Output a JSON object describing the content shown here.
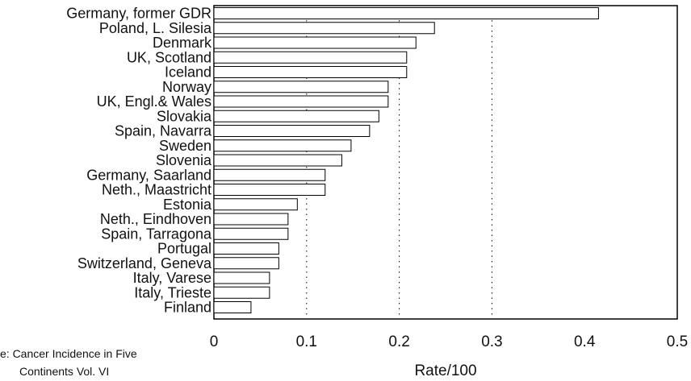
{
  "chart_data": {
    "type": "bar",
    "orientation": "horizontal",
    "categories": [
      "Germany, former GDR",
      "Poland, L. Silesia",
      "Denmark",
      "UK, Scotland",
      "Iceland",
      "Norway",
      "UK, Engl.& Wales",
      "Slovakia",
      "Spain, Navarra",
      "Sweden",
      "Slovenia",
      "Germany, Saarland",
      "Neth., Maastricht",
      "Estonia",
      "Neth., Eindhoven",
      "Spain, Tarragona",
      "Portugal",
      "Switzerland, Geneva",
      "Italy, Varese",
      "Italy, Trieste",
      "Finland"
    ],
    "values": [
      0.415,
      0.238,
      0.218,
      0.208,
      0.208,
      0.188,
      0.188,
      0.178,
      0.168,
      0.148,
      0.138,
      0.12,
      0.12,
      0.09,
      0.08,
      0.08,
      0.07,
      0.07,
      0.06,
      0.06,
      0.04
    ],
    "xlabel": "Rate/100",
    "xlim": [
      0,
      0.5
    ],
    "xticks": [
      "0",
      "0.1",
      "0.2",
      "0.3",
      "0.4",
      "0.5"
    ],
    "grid": "vertical dotted lines at 0.1, 0.2, 0.3",
    "bar_color": "#ffffff",
    "edge_color": "#000000"
  },
  "source_note": {
    "line1": "e: Cancer Incidence in Five",
    "line2": "Continents Vol. VI"
  }
}
